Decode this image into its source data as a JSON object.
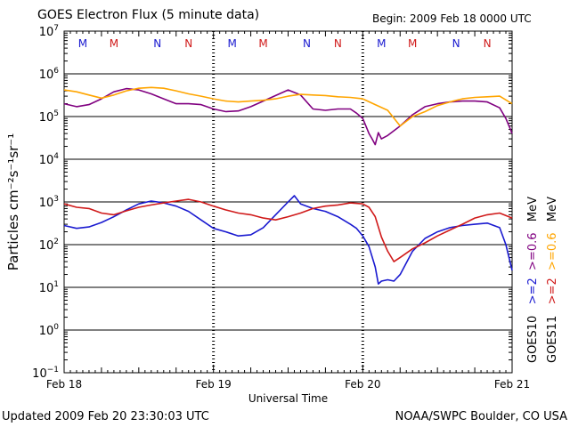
{
  "chart_data": {
    "type": "line",
    "title": "GOES Electron Flux (5 minute data)",
    "begin_label": "Begin: 2009 Feb 18 0000 UTC",
    "xlabel": "Universal Time",
    "ylabel": "Particles cm⁻²s⁻¹sr⁻¹",
    "y_scale": "log",
    "ylim": [
      0.1,
      10000000
    ],
    "xlim": [
      0,
      72
    ],
    "x_tick_labels": [
      "Feb 18",
      "Feb 19",
      "Feb 20",
      "Feb 21"
    ],
    "x_tick_hours": [
      0,
      24,
      48,
      72
    ],
    "y_tick_exponents": [
      -1,
      0,
      1,
      2,
      3,
      4,
      5,
      6,
      7
    ],
    "threshold": 1000,
    "grid": true,
    "local_time_markers": [
      {
        "label": "M",
        "hour": 3,
        "color": "#1a1ad0"
      },
      {
        "label": "M",
        "hour": 8,
        "color": "#d01a1a"
      },
      {
        "label": "N",
        "hour": 15,
        "color": "#1a1ad0"
      },
      {
        "label": "N",
        "hour": 20,
        "color": "#d01a1a"
      },
      {
        "label": "M",
        "hour": 27,
        "color": "#1a1ad0"
      },
      {
        "label": "M",
        "hour": 32,
        "color": "#d01a1a"
      },
      {
        "label": "N",
        "hour": 39,
        "color": "#1a1ad0"
      },
      {
        "label": "N",
        "hour": 44,
        "color": "#d01a1a"
      },
      {
        "label": "M",
        "hour": 51,
        "color": "#1a1ad0"
      },
      {
        "label": "M",
        "hour": 56,
        "color": "#d01a1a"
      },
      {
        "label": "N",
        "hour": 63,
        "color": "#1a1ad0"
      },
      {
        "label": "N",
        "hour": 68,
        "color": "#d01a1a"
      }
    ],
    "legend": [
      {
        "satellite": "GOES10",
        "line1": ">=2",
        "line2": ">=0.6",
        "unit": "MeV",
        "color1": "#1a1ad0",
        "color2": "#800080"
      },
      {
        "satellite": "GOES11",
        "line1": ">=2",
        "line2": ">=0.6",
        "unit": "MeV",
        "color1": "#d01a1a",
        "color2": "#ffa500"
      }
    ],
    "series": [
      {
        "color": "#800080",
        "x": [
          0,
          2,
          4,
          6,
          8,
          10,
          12,
          14,
          16,
          18,
          20,
          22,
          24,
          26,
          28,
          30,
          32,
          34,
          36,
          38,
          40,
          42,
          44,
          46,
          47,
          48,
          48.5,
          49,
          49.5,
          50,
          50.5,
          51,
          52,
          54,
          56,
          58,
          60,
          62,
          64,
          66,
          68,
          70,
          71,
          72
        ],
        "y": [
          200000,
          170000,
          190000,
          260000,
          380000,
          450000,
          420000,
          340000,
          260000,
          200000,
          200000,
          190000,
          150000,
          130000,
          135000,
          170000,
          230000,
          310000,
          420000,
          320000,
          150000,
          140000,
          150000,
          150000,
          120000,
          90000,
          60000,
          40000,
          30000,
          22000,
          42000,
          30000,
          36000,
          60000,
          110000,
          170000,
          200000,
          220000,
          230000,
          230000,
          220000,
          160000,
          90000,
          40000
        ]
      },
      {
        "color": "#ffa500",
        "x": [
          0,
          2,
          4,
          6,
          8,
          10,
          12,
          14,
          16,
          18,
          20,
          22,
          24,
          26,
          28,
          30,
          32,
          34,
          36,
          38,
          40,
          42,
          44,
          46,
          48,
          50,
          52,
          54,
          56,
          58,
          60,
          62,
          64,
          66,
          68,
          70,
          72
        ],
        "y": [
          420000,
          380000,
          320000,
          270000,
          320000,
          400000,
          460000,
          480000,
          460000,
          400000,
          340000,
          300000,
          260000,
          230000,
          220000,
          230000,
          240000,
          260000,
          300000,
          330000,
          320000,
          310000,
          290000,
          280000,
          260000,
          190000,
          140000,
          60000,
          100000,
          130000,
          180000,
          220000,
          260000,
          280000,
          290000,
          300000,
          200000
        ]
      },
      {
        "color": "#1a1ad0",
        "x": [
          0,
          2,
          4,
          6,
          8,
          10,
          12,
          14,
          15,
          16,
          18,
          20,
          22,
          24,
          26,
          28,
          30,
          32,
          34,
          36,
          37,
          38,
          40,
          42,
          44,
          46,
          47,
          48,
          49,
          50,
          50.5,
          51,
          52,
          53,
          54,
          56,
          58,
          60,
          62,
          64,
          66,
          68,
          70,
          71,
          72
        ],
        "y": [
          280,
          240,
          260,
          330,
          450,
          650,
          900,
          1050,
          1000,
          950,
          800,
          600,
          380,
          240,
          200,
          160,
          170,
          250,
          500,
          1000,
          1400,
          900,
          700,
          600,
          450,
          300,
          240,
          160,
          90,
          30,
          12,
          14,
          15,
          14,
          20,
          70,
          140,
          200,
          250,
          280,
          300,
          320,
          250,
          100,
          25
        ]
      },
      {
        "color": "#d01a1a",
        "x": [
          0,
          2,
          4,
          6,
          8,
          10,
          12,
          14,
          16,
          18,
          20,
          22,
          24,
          26,
          28,
          30,
          32,
          34,
          36,
          38,
          40,
          42,
          44,
          46,
          48,
          49,
          50,
          51,
          52,
          53,
          54,
          56,
          58,
          60,
          62,
          64,
          66,
          68,
          70,
          72
        ],
        "y": [
          900,
          750,
          700,
          550,
          500,
          620,
          750,
          850,
          950,
          1050,
          1150,
          1000,
          800,
          650,
          550,
          500,
          420,
          380,
          450,
          550,
          700,
          800,
          850,
          950,
          900,
          750,
          450,
          150,
          70,
          40,
          50,
          80,
          110,
          160,
          220,
          300,
          420,
          500,
          550,
          420
        ]
      }
    ]
  },
  "footer": {
    "updated": "Updated 2009 Feb 20 23:30:03 UTC",
    "source": "NOAA/SWPC Boulder, CO USA"
  }
}
